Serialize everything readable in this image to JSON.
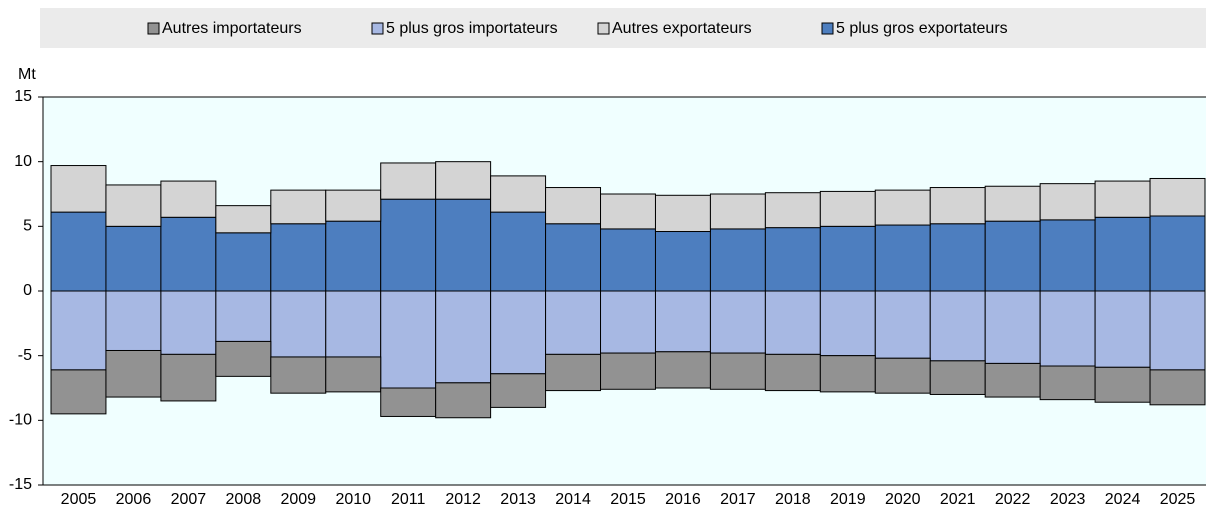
{
  "chart_data": {
    "type": "stacked-bar",
    "y_unit": "Mt",
    "categories": [
      "2005",
      "2006",
      "2007",
      "2008",
      "2009",
      "2010",
      "2011",
      "2012",
      "2013",
      "2014",
      "2015",
      "2016",
      "2017",
      "2018",
      "2019",
      "2020",
      "2021",
      "2022",
      "2023",
      "2024",
      "2025"
    ],
    "series": [
      {
        "name": "Autres importateurs",
        "color": "#929292",
        "values": [
          -3.4,
          -3.6,
          -3.6,
          -2.7,
          -2.8,
          -2.7,
          -2.2,
          -2.7,
          -2.6,
          -2.8,
          -2.8,
          -2.8,
          -2.8,
          -2.8,
          -2.8,
          -2.7,
          -2.6,
          -2.6,
          -2.6,
          -2.7,
          -2.7
        ]
      },
      {
        "name": "5 plus gros importateurs",
        "color": "#a7b8e3",
        "values": [
          -6.1,
          -4.6,
          -4.9,
          -3.9,
          -5.1,
          -5.1,
          -7.5,
          -7.1,
          -6.4,
          -4.9,
          -4.8,
          -4.7,
          -4.8,
          -4.9,
          -5.0,
          -5.2,
          -5.4,
          -5.6,
          -5.8,
          -5.9,
          -6.1
        ]
      },
      {
        "name": "Autres exportateurs",
        "color": "#d4d4d4",
        "values": [
          3.6,
          3.2,
          2.8,
          2.1,
          2.6,
          2.4,
          2.8,
          2.9,
          2.8,
          2.8,
          2.7,
          2.8,
          2.7,
          2.7,
          2.7,
          2.7,
          2.8,
          2.7,
          2.8,
          2.8,
          2.9
        ]
      },
      {
        "name": "5 plus gros exportateurs",
        "color": "#4d7ebf",
        "values": [
          6.1,
          5.0,
          5.7,
          4.5,
          5.2,
          5.4,
          7.1,
          7.1,
          6.1,
          5.2,
          4.8,
          4.6,
          4.8,
          4.9,
          5.0,
          5.1,
          5.2,
          5.4,
          5.5,
          5.7,
          5.8
        ]
      }
    ],
    "ylim": [
      -15,
      15
    ],
    "yticks": [
      15,
      10,
      5,
      0,
      -5,
      -10,
      -15
    ],
    "plot_background": "#f0ffff"
  }
}
